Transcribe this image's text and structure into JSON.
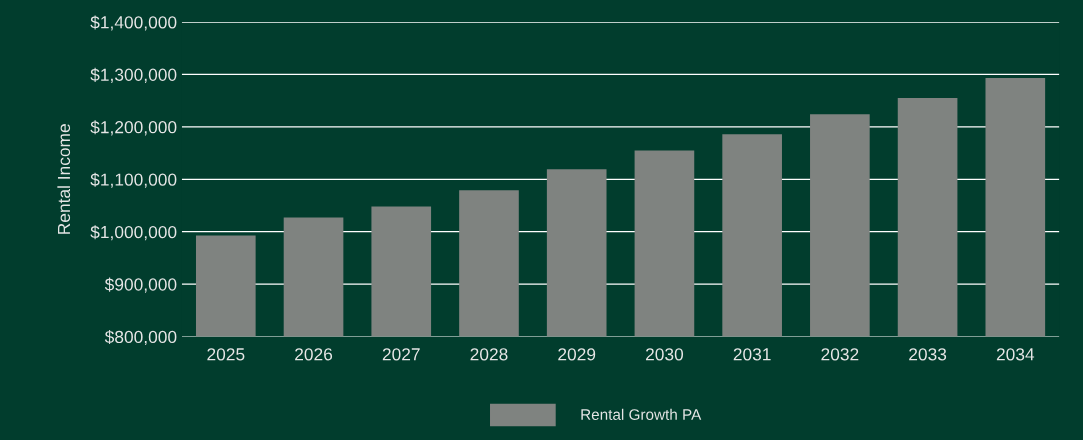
{
  "chart_data": {
    "type": "bar",
    "ylabel": "Rental Income",
    "categories": [
      "2025",
      "2026",
      "2027",
      "2028",
      "2029",
      "2030",
      "2031",
      "2032",
      "2033",
      "2034"
    ],
    "series": [
      {
        "name": "Rental Growth PA",
        "color": "#7f8380",
        "values": [
          993000,
          1027000,
          1048000,
          1079000,
          1119000,
          1155000,
          1186000,
          1224000,
          1255000,
          1293000
        ]
      }
    ],
    "ylim": [
      800000,
      1400000
    ],
    "yticks": [
      {
        "value": 800000,
        "label": "$800,000"
      },
      {
        "value": 900000,
        "label": "$900,000"
      },
      {
        "value": 1000000,
        "label": "$1,000,000"
      },
      {
        "value": 1100000,
        "label": "$1,100,000"
      },
      {
        "value": 1200000,
        "label": "$1,200,000"
      },
      {
        "value": 1300000,
        "label": "$1,300,000"
      },
      {
        "value": 1400000,
        "label": "$1,400,000"
      }
    ],
    "grid": "y",
    "legend": "bottom"
  }
}
